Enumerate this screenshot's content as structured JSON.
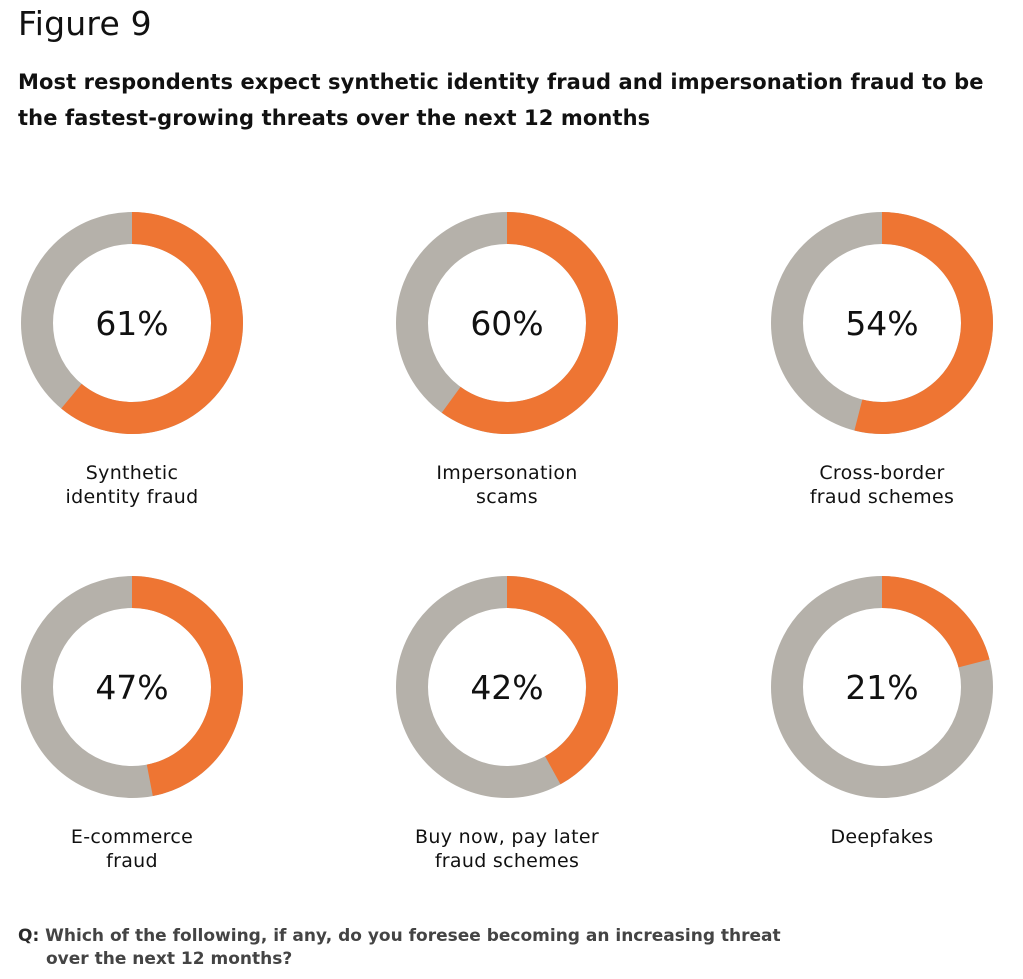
{
  "figure_label": "Figure 9",
  "title": "Most respondents expect synthetic identity fraud and impersonation fraud to be the fastest-growing threats over the next 12 months",
  "question": {
    "prefix": "Q:",
    "line1": "Which of the following, if any, do you foresee becoming an increasing threat",
    "line2": "over the next 12 months?"
  },
  "colors": {
    "accent": "#ee7533",
    "remainder": "#b5b1aa",
    "text": "#111111"
  },
  "chart_data": {
    "type": "pie",
    "variant": "donut",
    "unit": "%",
    "categories": [
      "Synthetic identity fraud",
      "Impersonation scams",
      "Cross-border fraud schemes",
      "E-commerce fraud",
      "Buy now, pay later fraud schemes",
      "Deepfakes"
    ],
    "values": [
      61,
      60,
      54,
      47,
      42,
      21
    ],
    "value_labels": [
      "61%",
      "60%",
      "54%",
      "47%",
      "42%",
      "21%"
    ],
    "display_labels": [
      "Synthetic\nidentity fraud",
      "Impersonation\nscams",
      "Cross-border\nfraud schemes",
      "E-commerce\nfraud",
      "Buy now, pay later\nfraud schemes",
      "Deepfakes"
    ]
  }
}
